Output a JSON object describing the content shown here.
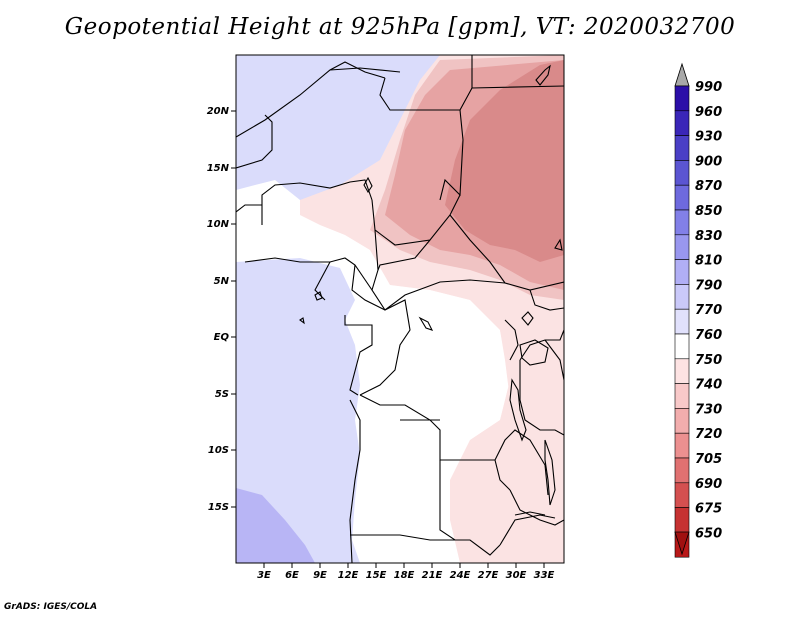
{
  "title": "Geopotential Height at 925hPa [gpm], VT: 2020032700",
  "footer": "GrADS: IGES/COLA",
  "map": {
    "lat_labels": [
      "20N",
      "15N",
      "10N",
      "5N",
      "EQ",
      "5S",
      "10S",
      "15S"
    ],
    "lon_labels": [
      "3E",
      "6E",
      "9E",
      "12E",
      "15E",
      "18E",
      "21E",
      "24E",
      "27E",
      "30E",
      "33E"
    ],
    "colors": {
      "deep_red": "#d98a8a",
      "mid_red": "#e6a3a3",
      "light_red": "#f0c3c3",
      "pale_red": "#fbe3e3",
      "white": "#ffffff",
      "pale_blue": "#dadcfb",
      "light_blue": "#b8b5f5"
    }
  },
  "colorbar": {
    "levels": [
      "990",
      "960",
      "930",
      "900",
      "870",
      "850",
      "830",
      "810",
      "790",
      "770",
      "760",
      "750",
      "740",
      "730",
      "720",
      "705",
      "690",
      "675",
      "650"
    ],
    "colors": [
      "#2b0ea8",
      "#3a26b8",
      "#4a3fc6",
      "#5b55d2",
      "#6e6ade",
      "#8280e8",
      "#9997ef",
      "#b1aff5",
      "#cac9f9",
      "#e1e1fc",
      "#ffffff",
      "#fde3e3",
      "#f8c9c9",
      "#f2adad",
      "#ec9090",
      "#e07171",
      "#d45050",
      "#c63232",
      "#b81818"
    ],
    "top_arrow_color": "#a8a8a8",
    "bottom_arrow_color": "#a01010"
  }
}
